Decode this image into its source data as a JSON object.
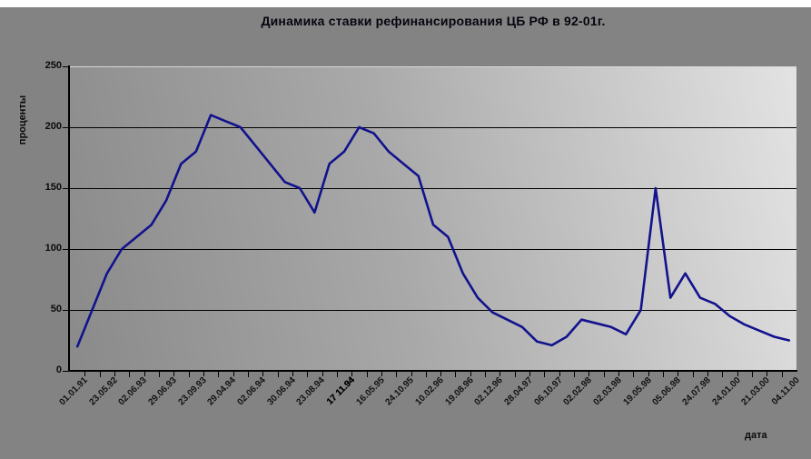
{
  "chart_style": {
    "outer_background": "#838383",
    "top_margin_color": "#ffffff",
    "plot_gradient_start": "#8a8a8a",
    "plot_gradient_end": "#e3e3e3",
    "line_color": "#12128e",
    "grid_color": "#000000",
    "top_grid_color": "#d9d9d9",
    "text_color": "#000000"
  },
  "chart_data": {
    "type": "line",
    "title": "Динамика ставки рефинансирования ЦБ РФ в 92-01г.",
    "xlabel": "дата",
    "ylabel": "проценты",
    "ylim": [
      0,
      250
    ],
    "yticks": [
      0,
      50,
      100,
      150,
      200,
      250
    ],
    "grid": "horizontal",
    "legend": "none",
    "x_label_every": 2,
    "bold_x_label": "17 11.94",
    "x_tick_labels": [
      "01.01.91",
      "23.05.92",
      "02.06.93",
      "29.06.93",
      "23.09.93",
      "29.04.94",
      "02.06.94",
      "30.06.94",
      "23.08.94",
      "17 11.94",
      "16.05.95",
      "24.10.95",
      "10.02.96",
      "19.08.96",
      "02.12.96",
      "28.04.97",
      "06.10.97",
      "02.02.98",
      "02.03.98",
      "19.05.98",
      "05.06.98",
      "24.07.98",
      "24.01.00",
      "21.03.00",
      "04.11.00"
    ],
    "values": [
      20,
      50,
      80,
      100,
      110,
      120,
      140,
      170,
      180,
      210,
      205,
      200,
      185,
      170,
      155,
      150,
      130,
      170,
      180,
      200,
      195,
      180,
      170,
      160,
      120,
      110,
      80,
      60,
      48,
      42,
      36,
      24,
      21,
      28,
      42,
      39,
      36,
      30,
      50,
      150,
      60,
      80,
      60,
      55,
      45,
      38,
      33,
      28,
      25
    ]
  }
}
